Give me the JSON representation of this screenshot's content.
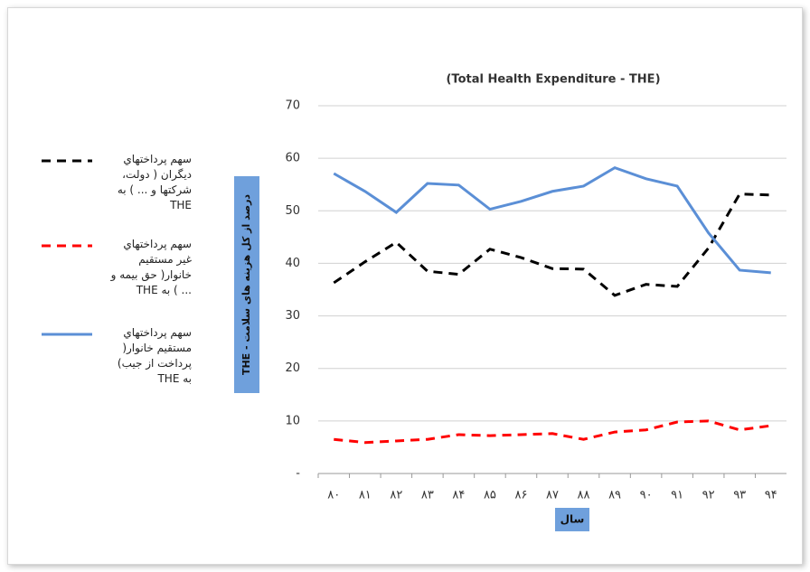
{
  "chart_data": {
    "type": "line",
    "title": "(Total Health Expenditure - THE)",
    "x_label": "سال",
    "y_label": "THE - درصد از کل هزینه های سلامت",
    "categories": [
      "۸۰",
      "۸۱",
      "۸۲",
      "۸۳",
      "۸۴",
      "۸۵",
      "۸۶",
      "۸۷",
      "۸۸",
      "۸۹",
      "۹۰",
      "۹۱",
      "۹۲",
      "۹۳",
      "۹۴"
    ],
    "series": [
      {
        "name": "سهم پرداختهاي ديگران ( دولت، شركتها و ... ) به THE",
        "color": "#000000",
        "dash": "dashed",
        "values": [
          36.3,
          40.3,
          44,
          38.5,
          37.9,
          42.7,
          41.1,
          39,
          38.9,
          33.9,
          36,
          35.6,
          42.9,
          53.2,
          53
        ]
      },
      {
        "name": "سهم پرداختهاي غير مستقيم خانوار( حق بيمه و ... ) به THE",
        "color": "#ff0000",
        "dash": "dashed",
        "values": [
          6.5,
          5.9,
          6.2,
          6.5,
          7.4,
          7.2,
          7.4,
          7.6,
          6.5,
          7.9,
          8.3,
          9.8,
          10,
          8.3,
          9.1
        ]
      },
      {
        "name": "سهم پرداختهاي مستقيم خانوار( پرداخت از جيب) به THE",
        "color": "#5b8fd6",
        "dash": "solid",
        "values": [
          57.1,
          53.7,
          49.7,
          55.2,
          54.9,
          50.3,
          51.8,
          53.7,
          54.7,
          58.2,
          56.1,
          54.7,
          45.8,
          38.7,
          38.2
        ]
      }
    ],
    "ylim": [
      0,
      70
    ],
    "yticks": [
      {
        "value": 0,
        "label": "-"
      },
      10,
      20,
      30,
      40,
      50,
      60,
      70
    ],
    "grid": true
  }
}
